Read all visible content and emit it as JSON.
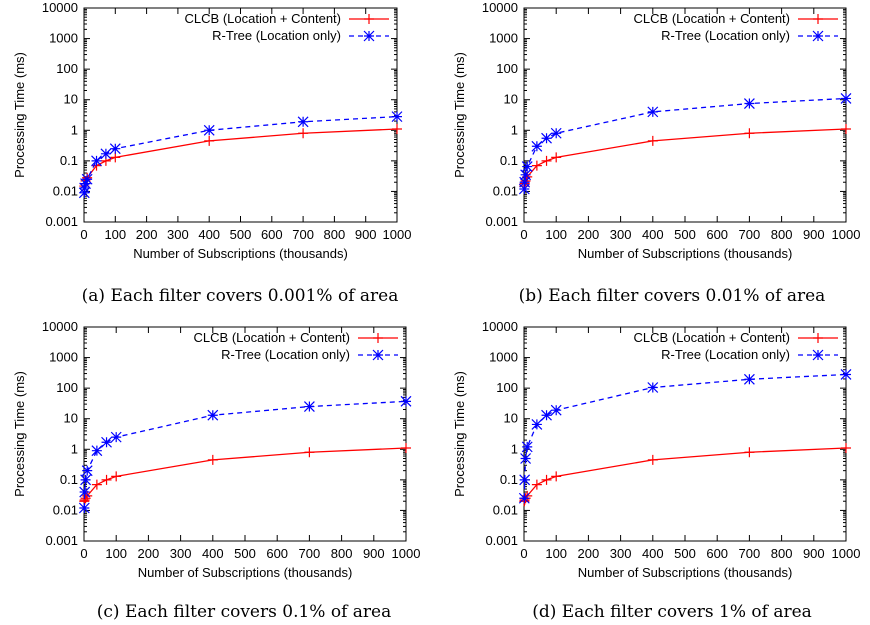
{
  "chart_data": [
    {
      "type": "line",
      "caption": "(a) Each filter covers 0.001% of area",
      "xlabel": "Number of Subscriptions (thousands)",
      "ylabel": "Processing Time (ms)",
      "xlim": [
        0,
        1000
      ],
      "ylim": [
        0.001,
        10000
      ],
      "yscale": "log",
      "xticks": [
        0,
        100,
        200,
        300,
        400,
        500,
        600,
        700,
        800,
        900,
        1000
      ],
      "yticks": [
        "0.001",
        "0.01",
        "0.1",
        "1",
        "10",
        "100",
        "1000",
        "10000"
      ],
      "grid": false,
      "legend_position": "top-right",
      "series": [
        {
          "name": "CLCB (Location + Content)",
          "color": "#ff0000",
          "style": "solid",
          "marker": "plus",
          "x": [
            1,
            2,
            5,
            10,
            40,
            70,
            100,
            400,
            700,
            1000
          ],
          "y": [
            0.015,
            0.018,
            0.022,
            0.028,
            0.07,
            0.1,
            0.13,
            0.45,
            0.8,
            1.1
          ]
        },
        {
          "name": "R-Tree (Location only)",
          "color": "#0000ff",
          "style": "dashed",
          "marker": "star",
          "x": [
            1,
            2,
            5,
            10,
            40,
            70,
            100,
            400,
            700,
            1000
          ],
          "y": [
            0.009,
            0.013,
            0.018,
            0.025,
            0.1,
            0.17,
            0.25,
            1.0,
            1.9,
            2.8
          ]
        }
      ]
    },
    {
      "type": "line",
      "caption": "(b) Each filter covers 0.01% of area",
      "xlabel": "Number of Subscriptions (thousands)",
      "ylabel": "Processing Time (ms)",
      "xlim": [
        0,
        1000
      ],
      "ylim": [
        0.001,
        10000
      ],
      "yscale": "log",
      "xticks": [
        0,
        100,
        200,
        300,
        400,
        500,
        600,
        700,
        800,
        900,
        1000
      ],
      "yticks": [
        "0.001",
        "0.01",
        "0.1",
        "1",
        "10",
        "100",
        "1000",
        "10000"
      ],
      "grid": false,
      "legend_position": "top-right",
      "series": [
        {
          "name": "CLCB (Location + Content)",
          "color": "#ff0000",
          "style": "solid",
          "marker": "plus",
          "x": [
            1,
            2,
            5,
            10,
            40,
            70,
            100,
            400,
            700,
            1000
          ],
          "y": [
            0.015,
            0.018,
            0.022,
            0.03,
            0.07,
            0.1,
            0.13,
            0.45,
            0.8,
            1.1
          ]
        },
        {
          "name": "R-Tree (Location only)",
          "color": "#0000ff",
          "style": "dashed",
          "marker": "star",
          "x": [
            1,
            2,
            5,
            10,
            40,
            70,
            100,
            400,
            700,
            1000
          ],
          "y": [
            0.012,
            0.02,
            0.035,
            0.065,
            0.3,
            0.55,
            0.8,
            4.0,
            7.5,
            11
          ]
        }
      ]
    },
    {
      "type": "line",
      "caption": "(c) Each filter covers 0.1% of area",
      "xlabel": "Number of Subscriptions (thousands)",
      "ylabel": "Processing Time (ms)",
      "xlim": [
        0,
        1000
      ],
      "ylim": [
        0.001,
        10000
      ],
      "yscale": "log",
      "xticks": [
        0,
        100,
        200,
        300,
        400,
        500,
        600,
        700,
        800,
        900,
        1000
      ],
      "yticks": [
        "0.001",
        "0.01",
        "0.1",
        "1",
        "10",
        "100",
        "1000",
        "10000"
      ],
      "grid": false,
      "legend_position": "top-right",
      "series": [
        {
          "name": "CLCB (Location + Content)",
          "color": "#ff0000",
          "style": "solid",
          "marker": "plus",
          "x": [
            1,
            2,
            5,
            10,
            40,
            70,
            100,
            400,
            700,
            1000
          ],
          "y": [
            0.02,
            0.022,
            0.025,
            0.03,
            0.07,
            0.1,
            0.13,
            0.45,
            0.8,
            1.1
          ]
        },
        {
          "name": "R-Tree (Location only)",
          "color": "#0000ff",
          "style": "dashed",
          "marker": "star",
          "x": [
            1,
            2,
            5,
            10,
            40,
            70,
            100,
            400,
            700,
            1000
          ],
          "y": [
            0.012,
            0.04,
            0.1,
            0.2,
            0.9,
            1.7,
            2.5,
            13,
            25,
            37
          ]
        }
      ]
    },
    {
      "type": "line",
      "caption": "(d) Each filter covers 1% of area",
      "xlabel": "Number of Subscriptions (thousands)",
      "ylabel": "Processing Time (ms)",
      "xlim": [
        0,
        1000
      ],
      "ylim": [
        0.001,
        10000
      ],
      "yscale": "log",
      "xticks": [
        0,
        100,
        200,
        300,
        400,
        500,
        600,
        700,
        800,
        900,
        1000
      ],
      "yticks": [
        "0.001",
        "0.01",
        "0.1",
        "1",
        "10",
        "100",
        "1000",
        "10000"
      ],
      "grid": false,
      "legend_position": "top-right",
      "series": [
        {
          "name": "CLCB (Location + Content)",
          "color": "#ff0000",
          "style": "solid",
          "marker": "plus",
          "x": [
            1,
            2,
            5,
            10,
            40,
            70,
            100,
            400,
            700,
            1000
          ],
          "y": [
            0.02,
            0.022,
            0.025,
            0.03,
            0.07,
            0.1,
            0.13,
            0.45,
            0.8,
            1.1
          ]
        },
        {
          "name": "R-Tree (Location only)",
          "color": "#0000ff",
          "style": "dashed",
          "marker": "star",
          "x": [
            1,
            2,
            5,
            10,
            40,
            70,
            100,
            400,
            700,
            1000
          ],
          "y": [
            0.025,
            0.1,
            0.5,
            1.2,
            6.5,
            13,
            19,
            105,
            195,
            280
          ]
        }
      ]
    }
  ]
}
